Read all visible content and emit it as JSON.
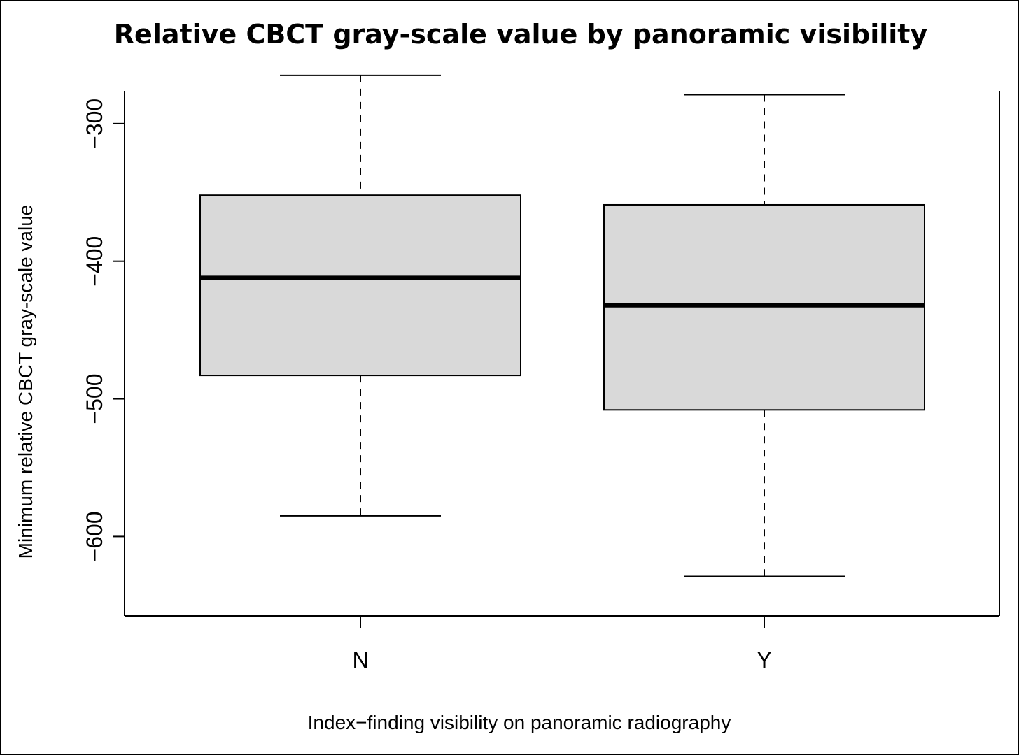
{
  "chart_data": {
    "type": "box",
    "title": "Relative CBCT gray-scale value by panoramic visibility",
    "xlabel": "Index−finding visibility on panoramic radiography",
    "ylabel": "Minimum relative CBCT gray-scale value",
    "ylim": [
      -645,
      -263
    ],
    "y_ticks": [
      -300,
      -400,
      -500,
      -600
    ],
    "y_tick_labels": [
      "−300",
      "−400",
      "−500",
      "−600"
    ],
    "categories": [
      "N",
      "Y"
    ],
    "boxes": [
      {
        "category": "N",
        "whisker_high": -265,
        "q3": -352,
        "median": -412,
        "q1": -483,
        "whisker_low": -585
      },
      {
        "category": "Y",
        "whisker_high": -279,
        "q3": -359,
        "median": -432,
        "q1": -508,
        "whisker_low": -629
      }
    ],
    "box_fill": "#d9d9d9",
    "line_color": "#000000",
    "grid": false
  }
}
